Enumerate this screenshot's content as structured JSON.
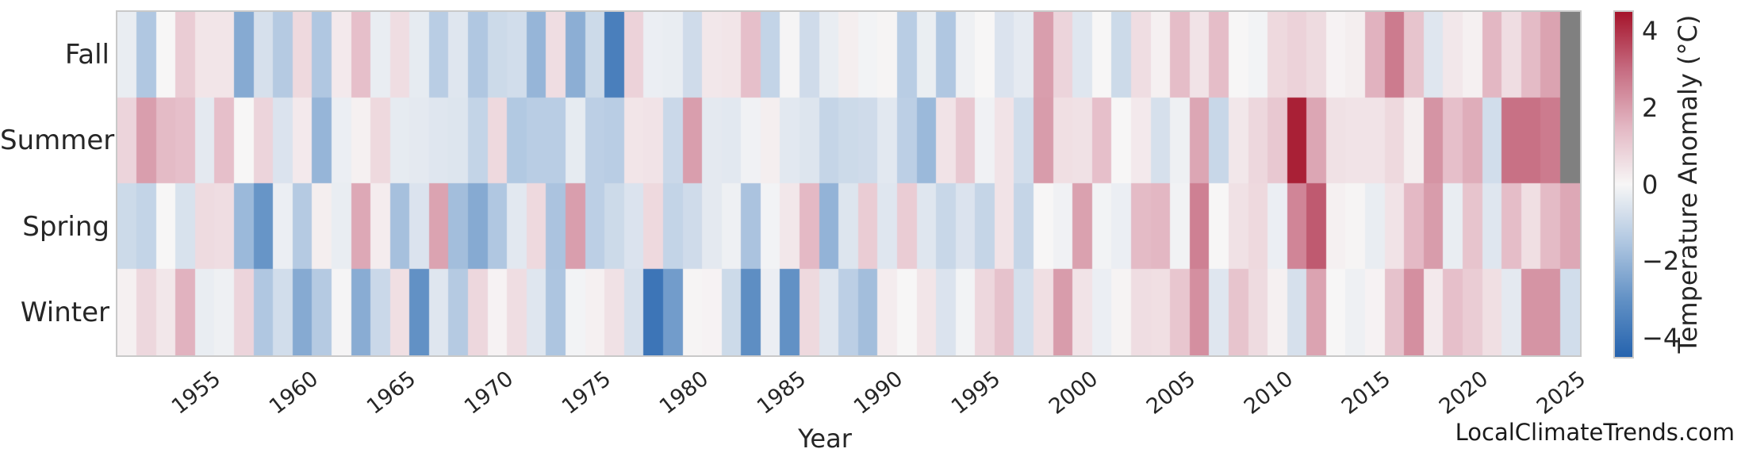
{
  "watermark": "LocalClimateTrends.com",
  "chart_data": {
    "type": "heatmap",
    "xlabel": "Year",
    "ylabel": "",
    "rows": [
      "Fall",
      "Summer",
      "Spring",
      "Winter"
    ],
    "years_range": [
      1950,
      2024
    ],
    "x_tick_labels": [
      "1955",
      "1960",
      "1965",
      "1970",
      "1975",
      "1980",
      "1985",
      "1990",
      "1995",
      "2000",
      "2005",
      "2010",
      "2015",
      "2020",
      "2025"
    ],
    "x_tick_years": [
      1955,
      1960,
      1965,
      1970,
      1975,
      1980,
      1985,
      1990,
      1995,
      2000,
      2005,
      2010,
      2015,
      2020,
      2025
    ],
    "grid": false,
    "nan_color": "#808080",
    "colorbar": {
      "label": "Temperature Anomaly (°C)",
      "tick_labels": [
        "4",
        "2",
        "0",
        "−2",
        "−4"
      ],
      "tick_values": [
        4,
        2,
        0,
        -2,
        -4
      ],
      "vmin": -4.5,
      "vmax": 4.5
    },
    "color_stops": [
      [
        -4.5,
        "#2563ae"
      ],
      [
        -3.0,
        "#6291c5"
      ],
      [
        -1.5,
        "#b0c7e1"
      ],
      [
        0.0,
        "#f7f6f6"
      ],
      [
        1.5,
        "#e3b7c3"
      ],
      [
        3.0,
        "#c66c81"
      ],
      [
        4.5,
        "#a5142b"
      ]
    ],
    "series": [
      {
        "name": "Fall",
        "values": [
          -0.3,
          -1.5,
          0,
          1,
          0.4,
          0.4,
          -2.3,
          -0.7,
          -1.4,
          0.7,
          -1.5,
          0.3,
          1.3,
          -0.3,
          0.6,
          -0.35,
          -1.3,
          -0.5,
          -1.5,
          -0.9,
          -0.8,
          -2,
          0.6,
          -2.2,
          -0.9,
          -3.6,
          0.85,
          -0.25,
          -0.3,
          -0.85,
          0.35,
          0.4,
          1.3,
          -1.1,
          -0.05,
          -0.85,
          -0.3,
          0.2,
          -0.1,
          0.05,
          -1.3,
          -0.27,
          -1.5,
          -0.2,
          0,
          -0.6,
          -0.37,
          2,
          0.8,
          -0.5,
          0,
          -0.9,
          0.6,
          0.15,
          1.35,
          0.45,
          1.35,
          0,
          -0.1,
          0.7,
          0.85,
          0.65,
          0.1,
          0.2,
          1.6,
          2.7,
          1.2,
          -0.5,
          0.35,
          0.15,
          1.5,
          0.6,
          1.4,
          1.9,
          null
        ]
      },
      {
        "name": "Summer",
        "values": [
          0.8,
          2,
          1.4,
          1.3,
          -0.4,
          1.3,
          0,
          0.8,
          -0.6,
          0.3,
          -2,
          -0.25,
          0.15,
          0.7,
          -0.35,
          -0.4,
          -0.5,
          -0.55,
          -1.1,
          0.7,
          -1.45,
          -1.3,
          -1.3,
          -0.35,
          -1.25,
          -1.3,
          0.4,
          0.45,
          -0.95,
          2,
          -0.4,
          -0.45,
          -0.15,
          0.2,
          -0.45,
          -0.55,
          -1.05,
          -0.9,
          -0.85,
          -0.45,
          -1.25,
          -1.9,
          0.45,
          1.1,
          -0.15,
          0.45,
          -0.8,
          2.05,
          0.55,
          0.5,
          1.3,
          0,
          0.3,
          -0.7,
          -0.2,
          1.85,
          -1,
          0.35,
          0.75,
          1.1,
          4.3,
          1.85,
          0.5,
          0.45,
          0.45,
          0.7,
          0.2,
          2.2,
          1.3,
          1.7,
          -0.8,
          2.9,
          2.9,
          2.7,
          null
        ]
      },
      {
        "name": "Spring",
        "values": [
          -0.9,
          -1.1,
          0,
          -0.65,
          0.65,
          0.6,
          -1.9,
          -2.9,
          -0.25,
          -1.4,
          0.2,
          -0.3,
          1.8,
          0.25,
          -1.7,
          -0.6,
          1.9,
          -1.75,
          -2.3,
          -1.5,
          -0.45,
          0.7,
          -1.6,
          2,
          -1.25,
          -0.9,
          -0.6,
          0.7,
          -1.1,
          -0.85,
          -0.4,
          -0.2,
          -1.6,
          -0.1,
          0.35,
          1.45,
          -2.05,
          -0.55,
          1,
          -0.5,
          1,
          -0.5,
          -1,
          -0.6,
          -1.05,
          0.45,
          -1.05,
          0,
          -0.15,
          1.95,
          -0.1,
          -0.25,
          1.4,
          1.5,
          -0.12,
          2.6,
          0,
          0.5,
          0.7,
          -0.25,
          2.5,
          3.3,
          0.15,
          0.05,
          -0.3,
          0.45,
          1.45,
          2.05,
          -0.3,
          1.2,
          -0.5,
          1.35,
          0.55,
          1.4,
          1.8
        ]
      },
      {
        "name": "Winter",
        "values": [
          0.15,
          0.75,
          0.35,
          1.6,
          -0.3,
          -0.2,
          0.8,
          -1.5,
          -0.8,
          -2.3,
          -1.4,
          -0.05,
          -2.25,
          -0.95,
          0.55,
          -3,
          -0.5,
          -1.4,
          0.75,
          0.1,
          0.6,
          -0.5,
          -1.55,
          -0.1,
          0.15,
          0.5,
          -0.7,
          -3.9,
          -2.7,
          0.05,
          0.1,
          -0.9,
          -3.1,
          -0.25,
          -3,
          0.7,
          -0.5,
          -1.25,
          -1.75,
          0.25,
          0,
          0.4,
          -0.6,
          -0.1,
          0.75,
          1.25,
          -0.75,
          0.55,
          2.05,
          0.45,
          -0.25,
          0.08,
          0.6,
          0.55,
          1.15,
          2.3,
          -0.5,
          1.2,
          0.65,
          0.15,
          -0.7,
          1.9,
          0,
          -0.2,
          0.1,
          1.25,
          2.3,
          0.3,
          1.3,
          1,
          0.55,
          -0.4,
          2.2,
          2.2,
          -0.8
        ]
      }
    ]
  }
}
